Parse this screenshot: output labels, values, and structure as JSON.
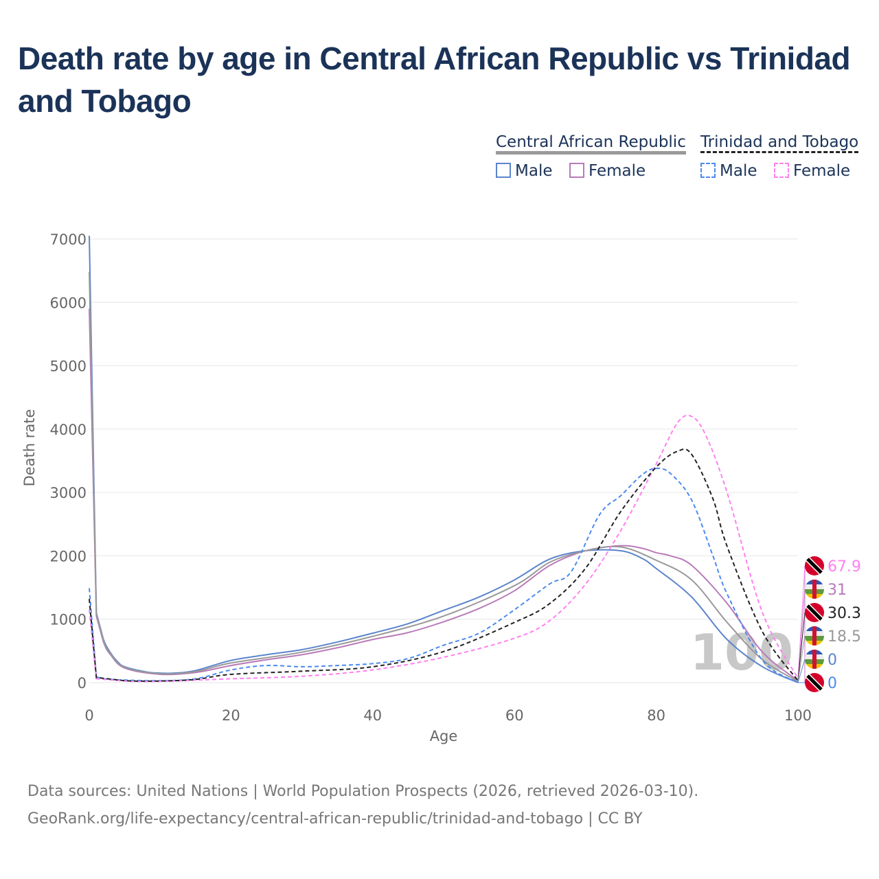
{
  "title": "Death rate by age in Central African Republic vs Trinidad and Tobago",
  "legend": {
    "groups": [
      {
        "name": "Central African Republic",
        "items": [
          "Male",
          "Female"
        ]
      },
      {
        "name": "Trinidad and Tobago",
        "items": [
          "Male",
          "Female"
        ]
      }
    ]
  },
  "watermark": "100",
  "sources": {
    "line1": "Data sources: United Nations | World Population Prospects (2026, retrieved 2026-03-10).",
    "line2": "GeoRank.org/life-expectancy/central-african-republic/trinidad-and-tobago | CC BY"
  },
  "chart_data": {
    "type": "line",
    "xlabel": "Age",
    "ylabel": "Death rate",
    "xlim": [
      0,
      100
    ],
    "ylim": [
      0,
      7000
    ],
    "xticks": [
      0,
      20,
      40,
      60,
      80,
      100
    ],
    "yticks": [
      0,
      1000,
      2000,
      3000,
      4000,
      5000,
      6000,
      7000
    ],
    "grid": true,
    "series": [
      {
        "name": "Central African Republic Male",
        "color": "#5a84cc",
        "dash": false,
        "end_label": "0",
        "x": [
          0,
          1,
          2,
          3,
          4,
          5,
          8,
          10,
          12,
          15,
          20,
          25,
          30,
          35,
          40,
          45,
          50,
          55,
          60,
          65,
          70,
          75,
          78,
          80,
          85,
          90,
          95,
          100
        ],
        "y": [
          7050,
          1100,
          680,
          470,
          330,
          250,
          170,
          150,
          150,
          190,
          350,
          440,
          520,
          640,
          780,
          930,
          1140,
          1350,
          1620,
          1950,
          2080,
          2080,
          1960,
          1800,
          1350,
          680,
          250,
          0
        ]
      },
      {
        "name": "Central African Republic Female",
        "color": "#b97ab9",
        "dash": false,
        "end_label": "31",
        "x": [
          0,
          1,
          2,
          3,
          5,
          10,
          15,
          20,
          25,
          30,
          35,
          40,
          45,
          50,
          55,
          60,
          65,
          70,
          75,
          78,
          80,
          82,
          85,
          90,
          95,
          100
        ],
        "y": [
          5900,
          1050,
          640,
          440,
          230,
          130,
          160,
          270,
          360,
          440,
          550,
          680,
          790,
          960,
          1170,
          1450,
          1850,
          2080,
          2160,
          2120,
          2050,
          2000,
          1850,
          1250,
          480,
          31
        ]
      },
      {
        "name": "Central African Republic Total",
        "color": "#999999",
        "dash": false,
        "end_label": "18.5",
        "x": [
          0,
          1,
          2,
          3,
          5,
          10,
          15,
          20,
          30,
          40,
          50,
          60,
          65,
          70,
          75,
          80,
          85,
          90,
          95,
          100
        ],
        "y": [
          6480,
          1080,
          660,
          455,
          240,
          140,
          175,
          310,
          480,
          730,
          1050,
          1530,
          1900,
          2080,
          2140,
          1930,
          1620,
          950,
          360,
          18.5
        ]
      },
      {
        "name": "Trinidad and Tobago Male",
        "color": "#4a8af0",
        "dash": true,
        "end_label": "0",
        "x": [
          0,
          1,
          2,
          5,
          10,
          15,
          20,
          25,
          30,
          35,
          40,
          45,
          50,
          55,
          60,
          65,
          68,
          72,
          75,
          78,
          80,
          82,
          85,
          88,
          90,
          95,
          100
        ],
        "y": [
          1490,
          90,
          60,
          40,
          30,
          60,
          200,
          270,
          250,
          270,
          300,
          380,
          590,
          780,
          1150,
          1560,
          1750,
          2650,
          2950,
          3280,
          3380,
          3300,
          2880,
          2000,
          1400,
          350,
          0
        ]
      },
      {
        "name": "Trinidad and Tobago Female",
        "color": "#ff80f0",
        "dash": true,
        "end_label": "67.9",
        "x": [
          0,
          1,
          5,
          10,
          20,
          30,
          40,
          50,
          60,
          65,
          70,
          75,
          80,
          83,
          85,
          87,
          90,
          95,
          100
        ],
        "y": [
          1150,
          60,
          25,
          20,
          60,
          100,
          200,
          400,
          700,
          980,
          1550,
          2400,
          3450,
          4100,
          4200,
          3900,
          3000,
          1100,
          67.9
        ]
      },
      {
        "name": "Trinidad and Tobago Total",
        "color": "#222222",
        "dash": true,
        "end_label": "30.3",
        "x": [
          0,
          1,
          5,
          10,
          15,
          20,
          30,
          40,
          50,
          60,
          65,
          70,
          75,
          80,
          83,
          85,
          88,
          90,
          95,
          100
        ],
        "y": [
          1320,
          80,
          30,
          25,
          50,
          130,
          180,
          250,
          490,
          950,
          1250,
          1800,
          2700,
          3400,
          3650,
          3600,
          2900,
          2150,
          800,
          30.3
        ]
      }
    ]
  }
}
